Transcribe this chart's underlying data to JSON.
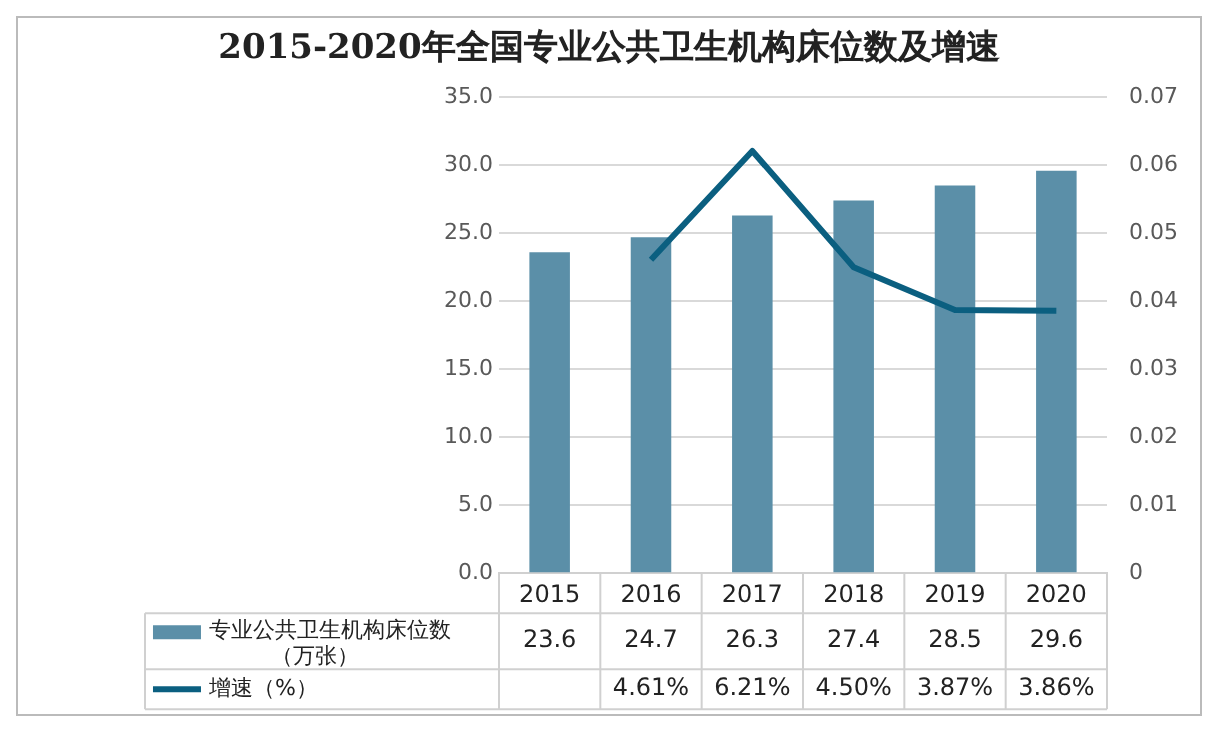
{
  "chart_data": {
    "type": "bar",
    "title": "2015-2020年全国专业公共卫生机构床位数及增速",
    "categories": [
      "2015",
      "2016",
      "2017",
      "2018",
      "2019",
      "2020"
    ],
    "series": [
      {
        "name": "专业公共卫生机构床位数（万张）",
        "color": "#5b8fa8",
        "values": [
          23.6,
          24.7,
          26.3,
          27.4,
          28.5,
          29.6
        ],
        "value_labels": [
          "23.6",
          "24.7",
          "26.3",
          "27.4",
          "28.5",
          "29.6"
        ]
      },
      {
        "name": "增速（%）",
        "type": "line",
        "axis": "y2",
        "color": "#0b5f80",
        "values": [
          null,
          0.0461,
          0.0621,
          0.045,
          0.0387,
          0.0386
        ],
        "value_labels": [
          null,
          "4.61%",
          "6.21%",
          "4.50%",
          "3.87%",
          "3.86%"
        ]
      }
    ],
    "ylim": [
      0,
      35
    ],
    "yticks": [
      {
        "value": 0,
        "label": "0.0"
      },
      {
        "value": 5,
        "label": "5.0"
      },
      {
        "value": 10,
        "label": "10.0"
      },
      {
        "value": 15,
        "label": "15.0"
      },
      {
        "value": 20,
        "label": "20.0"
      },
      {
        "value": 25,
        "label": "25.0"
      },
      {
        "value": 30,
        "label": "30.0"
      },
      {
        "value": 35,
        "label": "35.0"
      }
    ],
    "y2lim": [
      0,
      0.07
    ],
    "y2ticks": [
      0,
      0.01,
      0.02,
      0.03,
      0.04,
      0.05,
      0.06,
      0.07
    ],
    "grid": "y",
    "legend": "bottom",
    "marker": "none",
    "line_style": "solid"
  }
}
